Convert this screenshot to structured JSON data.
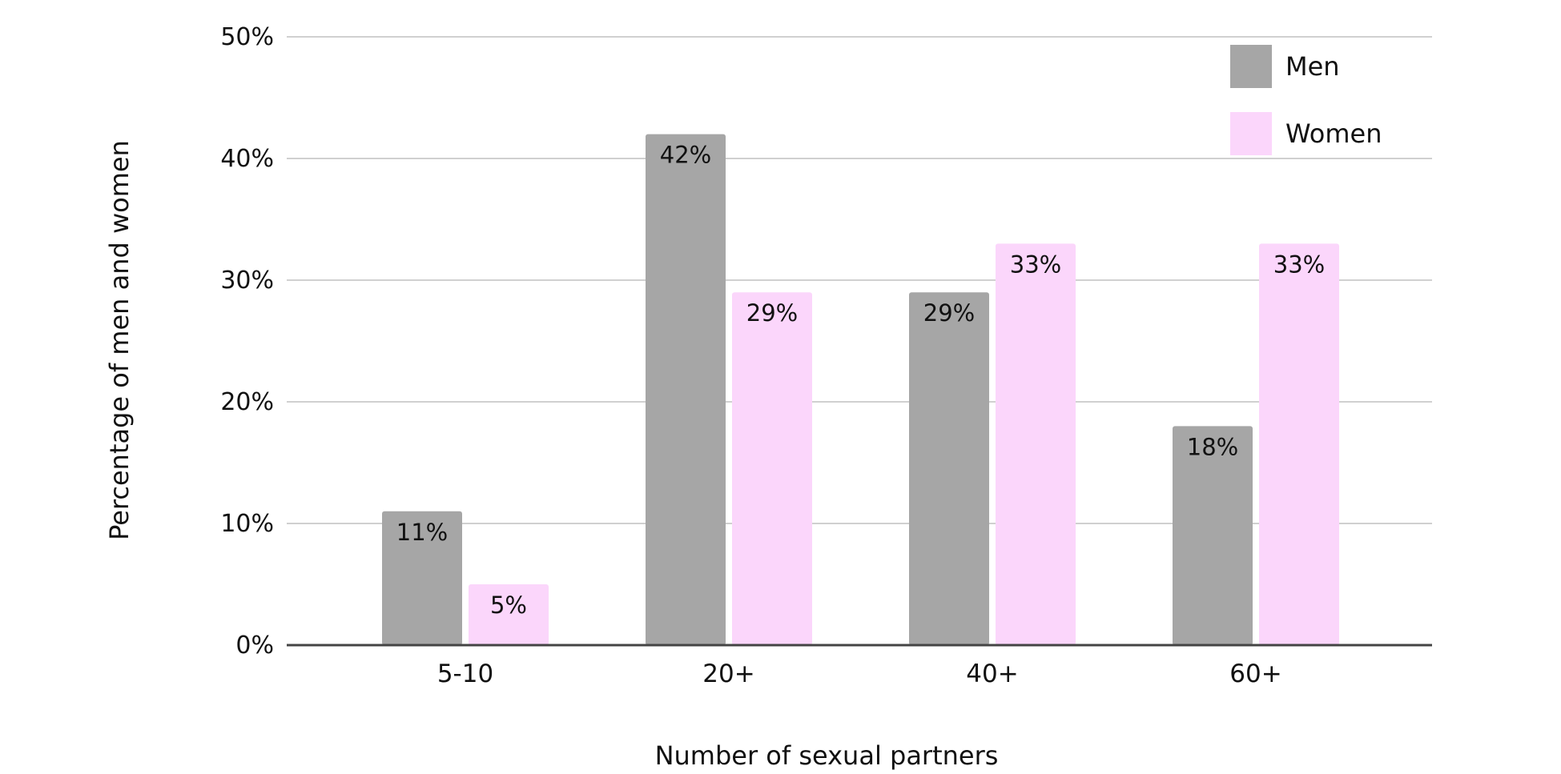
{
  "chart_data": {
    "type": "bar",
    "categories": [
      "5-10",
      "20+",
      "40+",
      "60+"
    ],
    "series": [
      {
        "name": "Men",
        "values": [
          11,
          42,
          29,
          18
        ],
        "labels": [
          "11%",
          "42%",
          "29%",
          "18%"
        ],
        "color": "#a6a6a6"
      },
      {
        "name": "Women",
        "values": [
          5,
          29,
          33,
          33
        ],
        "labels": [
          "5%",
          "29%",
          "33%",
          "33%"
        ],
        "color": "#fbd6fb"
      }
    ],
    "xlabel": "Number of sexual partners",
    "ylabel": "Percentage of men and women",
    "ylim": [
      0,
      50
    ],
    "yticks": [
      0,
      10,
      20,
      30,
      40,
      50
    ],
    "ytick_labels": [
      "0%",
      "10%",
      "20%",
      "30%",
      "40%",
      "50%"
    ],
    "grid": true,
    "legend_position": "top-right",
    "colors": {
      "gridline": "#d0d0d0",
      "axis": "#444444",
      "text": "#111111"
    }
  }
}
